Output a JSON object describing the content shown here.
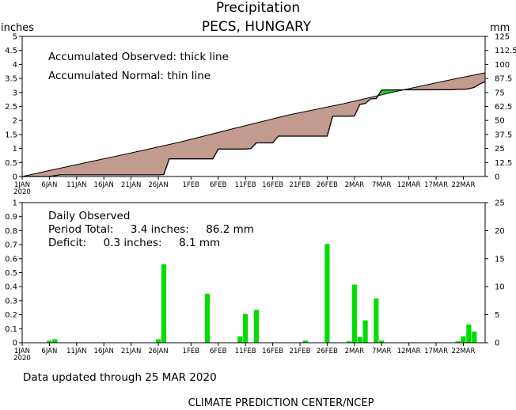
{
  "header": {
    "title": "Precipitation",
    "subtitle": "PECS, HUNGARY",
    "unit_left": "inches",
    "unit_right": "mm"
  },
  "footer": {
    "updated": "Data updated through 25 MAR 2020",
    "credit": "CLIMATE PREDICTION CENTER/NCEP"
  },
  "colors": {
    "deficit_fill": "#c39a8e",
    "surplus_fill": "#22cc22",
    "bar": "#00dd00",
    "axis": "#000000"
  },
  "x_axis": {
    "tick_labels": [
      "1JAN",
      "6JAN",
      "11JAN",
      "16JAN",
      "21JAN",
      "26JAN",
      "1FEB",
      "6FEB",
      "11FEB",
      "16FEB",
      "21FEB",
      "26FEB",
      "2MAR",
      "7MAR",
      "12MAR",
      "17MAR",
      "22MAR"
    ],
    "tick_days": [
      1,
      6,
      11,
      16,
      21,
      26,
      32,
      37,
      42,
      47,
      52,
      57,
      62,
      67,
      72,
      77,
      82
    ],
    "year_label": "2020",
    "range_days": [
      1,
      86
    ]
  },
  "chart_data": [
    {
      "type": "area",
      "notes": [
        "Accumulated Observed: thick line",
        "Accumulated Normal: thin line"
      ],
      "ylim_inches": [
        0,
        5
      ],
      "yticks_inches": [
        "0",
        "0.5",
        "1",
        "1.5",
        "2",
        "2.5",
        "3",
        "3.5",
        "4",
        "4.5",
        "5"
      ],
      "ylim_mm": [
        0,
        125
      ],
      "yticks_mm": [
        "0",
        "12.5",
        "25",
        "37.5",
        "50",
        "62.5",
        "75",
        "87.5",
        "100",
        "112.5",
        "125"
      ],
      "series": [
        {
          "name": "Accumulated Normal",
          "x": [
            1,
            10,
            20,
            30,
            40,
            50,
            60,
            70,
            80,
            86
          ],
          "y": [
            0,
            0.38,
            0.8,
            1.23,
            1.72,
            2.2,
            2.6,
            3.05,
            3.47,
            3.7
          ]
        },
        {
          "name": "Accumulated Observed",
          "x": [
            1,
            6,
            7,
            8,
            9,
            10,
            11,
            16,
            21,
            26,
            27,
            28,
            29,
            30,
            36,
            37,
            38,
            39,
            40,
            41,
            42,
            43,
            44,
            45,
            46,
            47,
            48,
            56,
            57,
            58,
            59,
            60,
            61,
            62,
            63,
            64,
            65,
            66,
            67,
            68,
            80,
            81,
            82,
            83,
            84,
            85,
            86
          ],
          "y": [
            0,
            0,
            0.03,
            0.06,
            0.06,
            0.06,
            0.06,
            0.06,
            0.06,
            0.06,
            0.07,
            0.63,
            0.63,
            0.63,
            0.63,
            0.98,
            0.98,
            0.98,
            0.98,
            0.98,
            0.98,
            1.0,
            1.2,
            1.2,
            1.2,
            1.2,
            1.44,
            1.44,
            1.44,
            2.15,
            2.15,
            2.15,
            2.15,
            2.16,
            2.57,
            2.61,
            2.77,
            2.78,
            3.09,
            3.09,
            3.1,
            3.11,
            3.11,
            3.13,
            3.18,
            3.3,
            3.39
          ]
        }
      ]
    },
    {
      "type": "bar",
      "title": "Daily Observed",
      "period_total": "Period Total:     3.4 inches:     86.2 mm",
      "deficit": "Deficit:     0.3 inches:     8.1 mm",
      "ylim_inches": [
        0,
        1
      ],
      "yticks_inches": [
        "0",
        "0.1",
        "0.2",
        "0.3",
        "0.4",
        "0.5",
        "0.6",
        "0.7",
        "0.8",
        "0.9",
        "1"
      ],
      "ylim_mm": [
        0,
        25
      ],
      "yticks_mm": [
        "0",
        "5",
        "10",
        "15",
        "20",
        "25"
      ],
      "series": [
        {
          "name": "Daily Observed",
          "x": [
            6,
            7,
            26,
            27,
            35,
            41,
            42,
            44,
            53,
            57,
            61,
            62,
            63,
            64,
            66,
            67,
            81,
            82,
            83,
            84
          ],
          "y": [
            0.015,
            0.025,
            0.025,
            0.56,
            0.35,
            0.045,
            0.205,
            0.235,
            0.015,
            0.705,
            0.01,
            0.415,
            0.04,
            0.16,
            0.315,
            0.015,
            0.01,
            0.045,
            0.13,
            0.08
          ]
        }
      ]
    }
  ]
}
